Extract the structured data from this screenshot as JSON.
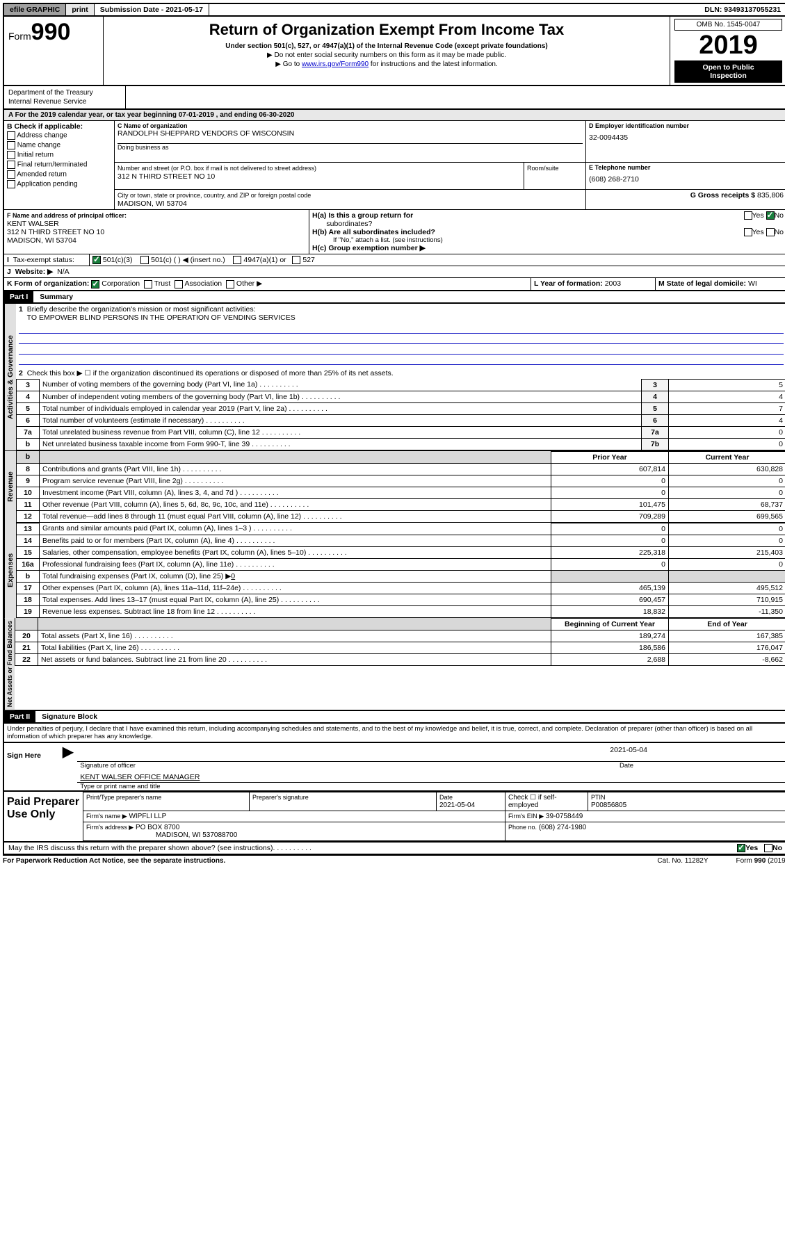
{
  "topbar": {
    "efile": "efile GRAPHIC",
    "print": "print",
    "submission": "Submission Date - 2021-05-17",
    "dln": "DLN: 93493137055231"
  },
  "header": {
    "form_prefix": "Form",
    "form_no": "990",
    "title": "Return of Organization Exempt From Income Tax",
    "subtitle": "Under section 501(c), 527, or 4947(a)(1) of the Internal Revenue Code (except private foundations)",
    "note1": "▶ Do not enter social security numbers on this form as it may be made public.",
    "note2_pre": "▶ Go to ",
    "note2_link": "www.irs.gov/Form990",
    "note2_post": " for instructions and the latest information.",
    "dept": "Department of the Treasury",
    "irs": "Internal Revenue Service",
    "omb": "OMB No. 1545-0047",
    "year": "2019",
    "open_l1": "Open to Public",
    "open_l2": "Inspection"
  },
  "secA": {
    "period": "For the 2019 calendar year, or tax year beginning 07-01-2019   , and ending 06-30-2020",
    "b_label": "B Check if applicable:",
    "checks": [
      "Address change",
      "Name change",
      "Initial return",
      "Final return/terminated",
      "Amended return",
      "Application pending"
    ],
    "c_label": "C Name of organization",
    "c_name": "RANDOLPH SHEPPARD VENDORS OF WISCONSIN",
    "dba_label": "Doing business as",
    "addr_label": "Number and street (or P.O. box if mail is not delivered to street address)",
    "room": "Room/suite",
    "addr": "312 N THIRD STREET NO 10",
    "city_label": "City or town, state or province, country, and ZIP or foreign postal code",
    "city": "MADISON, WI  53704",
    "d_label": "D Employer identification number",
    "d_ein": "32-0094435",
    "e_label": "E Telephone number",
    "e_phone": "(608) 268-2710",
    "g_label": "G Gross receipts $",
    "g_val": "835,806",
    "f_label": "F  Name and address of principal officer:",
    "f_name": "KENT WALSER",
    "f_addr1": "312 N THIRD STREET NO 10",
    "f_addr2": "MADISON, WI  53704",
    "ha_label": "H(a)  Is this a group return for",
    "ha_label2": "subordinates?",
    "hb_label": "H(b)  Are all subordinates included?",
    "hb_note": "If \"No,\" attach a list. (see instructions)",
    "hc_label": "H(c)  Group exemption number ▶",
    "yes": "Yes",
    "no": "No",
    "i_label": "Tax-exempt status:",
    "i_opts": [
      "501(c)(3)",
      "501(c) (   ) ◀ (insert no.)",
      "4947(a)(1) or",
      "527"
    ],
    "j_label": "Website: ▶",
    "j_val": "N/A",
    "k_label": "K Form of organization:",
    "k_opts": [
      "Corporation",
      "Trust",
      "Association",
      "Other ▶"
    ],
    "l_label": "L Year of formation:",
    "l_val": "2003",
    "m_label": "M State of legal domicile:",
    "m_val": "WI"
  },
  "partI": {
    "hdr": "Part I",
    "title": "Summary",
    "q1": "Briefly describe the organization's mission or most significant activities:",
    "mission": "TO EMPOWER BLIND PERSONS IN THE OPERATION OF VENDING SERVICES",
    "q2": "Check this box ▶ ☐  if the organization discontinued its operations or disposed of more than 25% of its net assets.",
    "col_prior": "Prior Year",
    "col_current": "Current Year",
    "col_begin": "Beginning of Current Year",
    "col_end": "End of Year",
    "lines_gov": [
      {
        "n": "3",
        "t": "Number of voting members of the governing body (Part VI, line 1a)",
        "box": "3",
        "v": "5"
      },
      {
        "n": "4",
        "t": "Number of independent voting members of the governing body (Part VI, line 1b)",
        "box": "4",
        "v": "4"
      },
      {
        "n": "5",
        "t": "Total number of individuals employed in calendar year 2019 (Part V, line 2a)",
        "box": "5",
        "v": "7"
      },
      {
        "n": "6",
        "t": "Total number of volunteers (estimate if necessary)",
        "box": "6",
        "v": "4"
      },
      {
        "n": "7a",
        "t": "Total unrelated business revenue from Part VIII, column (C), line 12",
        "box": "7a",
        "v": "0"
      },
      {
        "n": "b",
        "t": "Net unrelated business taxable income from Form 990-T, line 39",
        "box": "7b",
        "v": "0"
      }
    ],
    "lines_rev": [
      {
        "n": "8",
        "t": "Contributions and grants (Part VIII, line 1h)",
        "p": "607,814",
        "c": "630,828"
      },
      {
        "n": "9",
        "t": "Program service revenue (Part VIII, line 2g)",
        "p": "0",
        "c": "0"
      },
      {
        "n": "10",
        "t": "Investment income (Part VIII, column (A), lines 3, 4, and 7d )",
        "p": "0",
        "c": "0"
      },
      {
        "n": "11",
        "t": "Other revenue (Part VIII, column (A), lines 5, 6d, 8c, 9c, 10c, and 11e)",
        "p": "101,475",
        "c": "68,737"
      },
      {
        "n": "12",
        "t": "Total revenue—add lines 8 through 11 (must equal Part VIII, column (A), line 12)",
        "p": "709,289",
        "c": "699,565"
      }
    ],
    "lines_exp": [
      {
        "n": "13",
        "t": "Grants and similar amounts paid (Part IX, column (A), lines 1–3 )",
        "p": "0",
        "c": "0"
      },
      {
        "n": "14",
        "t": "Benefits paid to or for members (Part IX, column (A), line 4)",
        "p": "0",
        "c": "0"
      },
      {
        "n": "15",
        "t": "Salaries, other compensation, employee benefits (Part IX, column (A), lines 5–10)",
        "p": "225,318",
        "c": "215,403"
      },
      {
        "n": "16a",
        "t": "Professional fundraising fees (Part IX, column (A), line 11e)",
        "p": "0",
        "c": "0"
      }
    ],
    "line_b": {
      "n": "b",
      "t": "Total fundraising expenses (Part IX, column (D), line 25) ▶",
      "u": "0"
    },
    "lines_exp2": [
      {
        "n": "17",
        "t": "Other expenses (Part IX, column (A), lines 11a–11d, 11f–24e)",
        "p": "465,139",
        "c": "495,512"
      },
      {
        "n": "18",
        "t": "Total expenses. Add lines 13–17 (must equal Part IX, column (A), line 25)",
        "p": "690,457",
        "c": "710,915"
      },
      {
        "n": "19",
        "t": "Revenue less expenses. Subtract line 18 from line 12",
        "p": "18,832",
        "c": "-11,350"
      }
    ],
    "lines_net": [
      {
        "n": "20",
        "t": "Total assets (Part X, line 16)",
        "p": "189,274",
        "c": "167,385"
      },
      {
        "n": "21",
        "t": "Total liabilities (Part X, line 26)",
        "p": "186,586",
        "c": "176,047"
      },
      {
        "n": "22",
        "t": "Net assets or fund balances. Subtract line 21 from line 20",
        "p": "2,688",
        "c": "-8,662"
      }
    ],
    "vtab_gov": "Activities & Governance",
    "vtab_rev": "Revenue",
    "vtab_exp": "Expenses",
    "vtab_net": "Net Assets or Fund Balances"
  },
  "partII": {
    "hdr": "Part II",
    "title": "Signature Block",
    "jurat": "Under penalties of perjury, I declare that I have examined this return, including accompanying schedules and statements, and to the best of my knowledge and belief, it is true, correct, and complete. Declaration of preparer (other than officer) is based on all information of which preparer has any knowledge.",
    "sign_here": "Sign Here",
    "sig_of_officer": "Signature of officer",
    "sig_date": "2021-05-04",
    "date_lbl": "Date",
    "officer_name": "KENT WALSER  OFFICE MANAGER",
    "officer_cap": "Type or print name and title",
    "paid_label": "Paid Preparer Use Only",
    "prep_name_lbl": "Print/Type preparer's name",
    "prep_sig_lbl": "Preparer's signature",
    "prep_date_lbl": "Date",
    "prep_date": "2021-05-04",
    "check_if": "Check ☐ if self-employed",
    "ptin_lbl": "PTIN",
    "ptin": "P00856805",
    "firm_name_lbl": "Firm's name    ▶",
    "firm_name": "WIPFLI LLP",
    "firm_ein_lbl": "Firm's EIN ▶",
    "firm_ein": "39-0758449",
    "firm_addr_lbl": "Firm's address ▶",
    "firm_addr1": "PO BOX 8700",
    "firm_addr2": "MADISON, WI  537088700",
    "phone_lbl": "Phone no.",
    "phone": "(608) 274-1980",
    "discuss": "May the IRS discuss this return with the preparer shown above? (see instructions)",
    "discuss_dots": "   .    .    .    .    .    .    .    .    .    ."
  },
  "footer": {
    "paperwork": "For Paperwork Reduction Act Notice, see the separate instructions.",
    "cat": "Cat. No. 11282Y",
    "form": "Form 990 (2019)"
  }
}
